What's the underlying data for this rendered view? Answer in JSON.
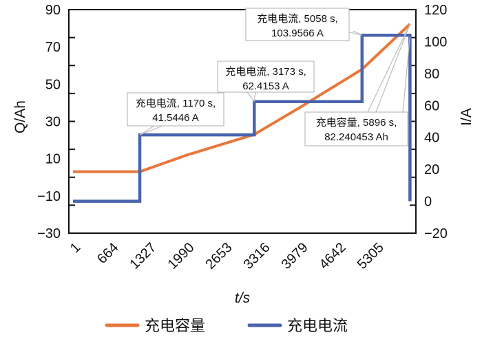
{
  "chart_data": {
    "type": "line",
    "xlabel": "t/s",
    "ylabel_left": "Q/Ah",
    "ylabel_right": "I/A",
    "xlim": [
      -70,
      6000
    ],
    "ylim_left": [
      -30,
      90
    ],
    "ylim_right": [
      -20,
      120
    ],
    "x_ticks": [
      1,
      664,
      1327,
      1990,
      2653,
      3316,
      3979,
      4642,
      5305
    ],
    "y_left_ticks": [
      90,
      70,
      50,
      30,
      10,
      -10,
      -30
    ],
    "y_left_ticklabels": [
      "90",
      "70",
      "50",
      "30",
      "10",
      "−10",
      "−30"
    ],
    "y_right_ticks": [
      120,
      100,
      80,
      60,
      40,
      20,
      0,
      -20
    ],
    "y_right_ticklabels": [
      "120",
      "100",
      "80",
      "60",
      "40",
      "20",
      "0",
      "−20"
    ],
    "grid": false,
    "legend_position": "bottom",
    "series": [
      {
        "name": "充电容量",
        "axis": "left",
        "color": "#e8773a",
        "x": [
          1,
          1170,
          2000,
          3173,
          4000,
          5058,
          5896
        ],
        "y": [
          3,
          3,
          12,
          23,
          38,
          58,
          82.240453
        ]
      },
      {
        "name": "充电电流",
        "axis": "right",
        "color": "#4a63ad",
        "x": [
          1,
          1170,
          1170,
          3173,
          3173,
          5058,
          5058,
          5896,
          5896
        ],
        "y": [
          0,
          0,
          41.5446,
          41.5446,
          62.4153,
          62.4153,
          103.9566,
          103.9566,
          0
        ]
      }
    ],
    "annotations": [
      {
        "line1": "充电电流, 1170 s,",
        "line2": "41.5446 A"
      },
      {
        "line1": "充电电流, 3173 s,",
        "line2": "62.4153 A"
      },
      {
        "line1": "充电电流, 5058 s,",
        "line2": "103.9566 A"
      },
      {
        "line1": "充电容量, 5896 s,",
        "line2": "82.240453 Ah"
      }
    ]
  }
}
